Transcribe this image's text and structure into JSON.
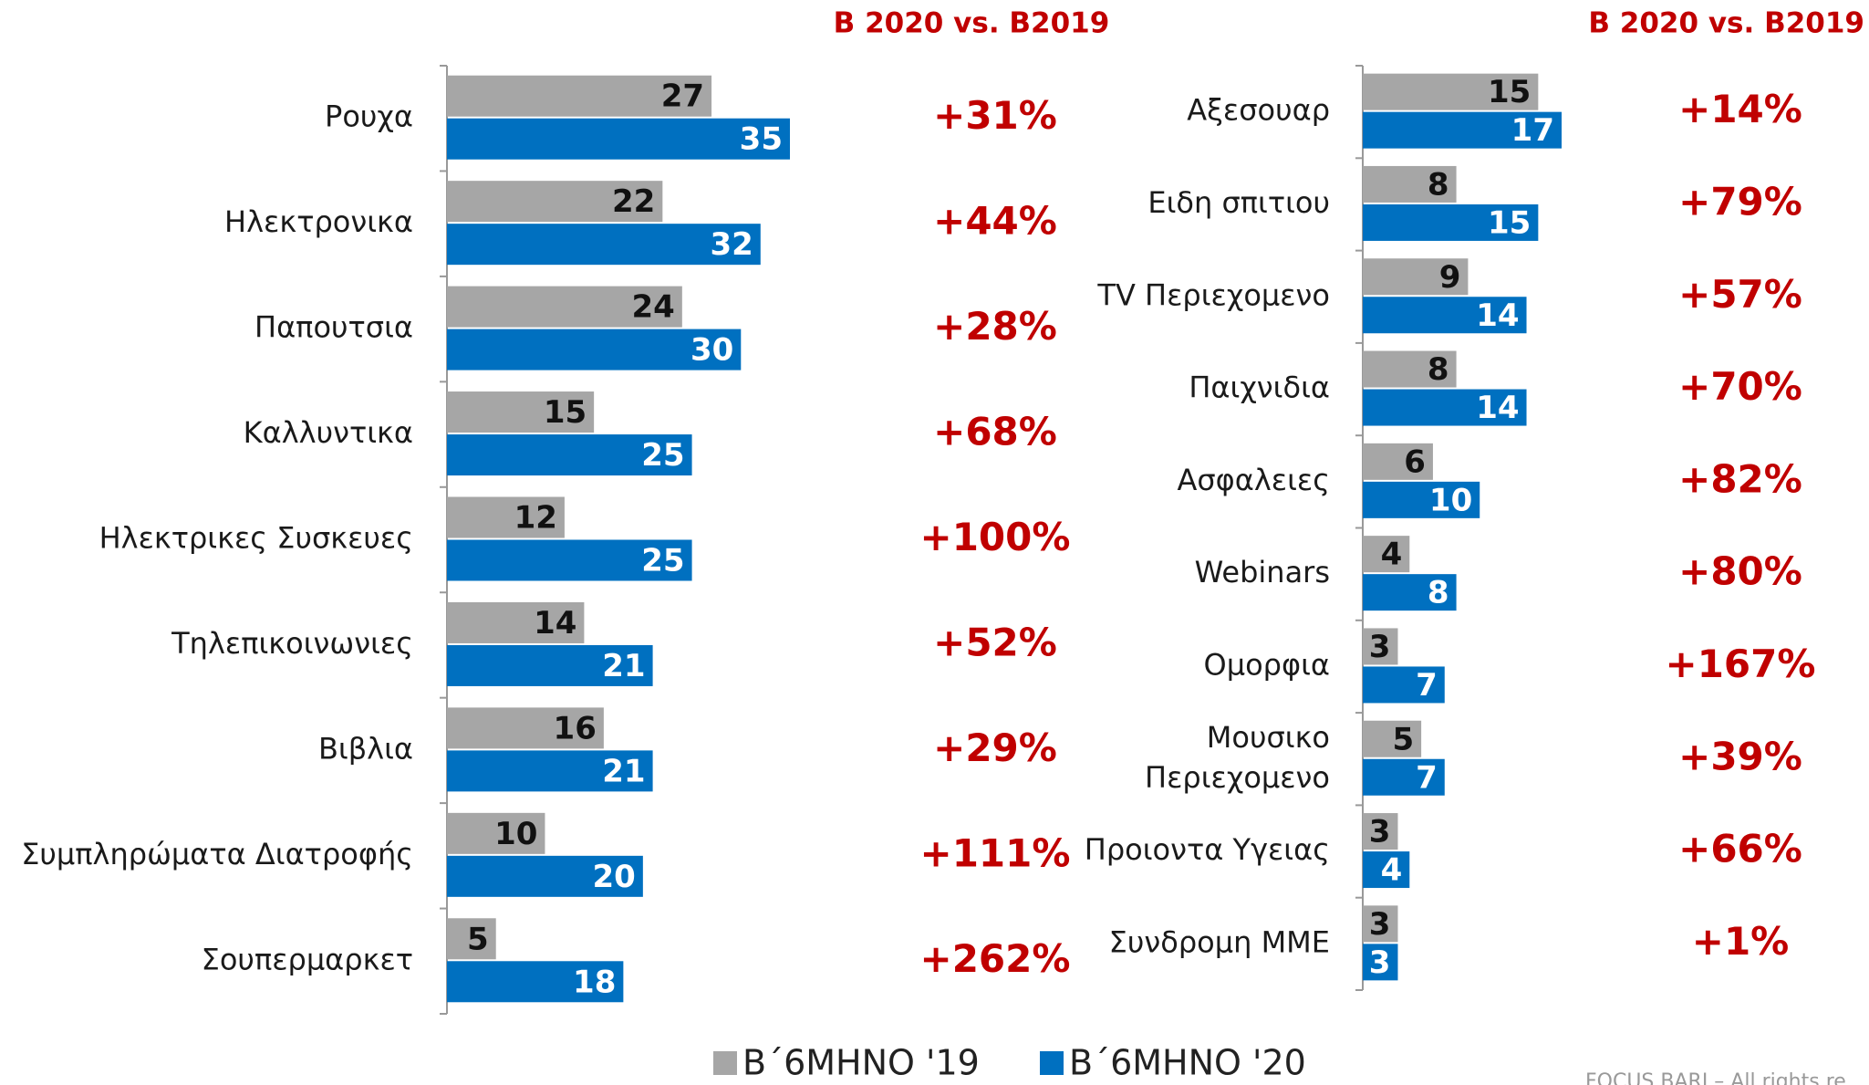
{
  "chart_data": [
    {
      "type": "bar",
      "orientation": "horizontal",
      "header": "B 2020 vs. B2019",
      "categories": [
        "Ρουχα",
        "Ηλεκτρονικα",
        "Παπουτσια",
        "Καλλυντικα",
        "Ηλεκτρικες Συσκευες",
        "Τηλεπικοινωνιες",
        "Βιβλια",
        "Συμπληρώματα Διατροφής",
        "Σουπερμαρκετ"
      ],
      "series": [
        {
          "name": "Β΄6ΜΗΝΟ '19",
          "color": "#a6a6a6",
          "values": [
            27,
            22,
            24,
            15,
            12,
            14,
            16,
            10,
            5
          ]
        },
        {
          "name": "Β΄6ΜΗΝΟ '20",
          "color": "#0070c0",
          "values": [
            35,
            32,
            30,
            25,
            25,
            21,
            21,
            20,
            18
          ]
        }
      ],
      "changes": [
        "+31%",
        "+44%",
        "+28%",
        "+68%",
        "+100%",
        "+52%",
        "+29%",
        "+111%",
        "+262%"
      ],
      "xlim": [
        0,
        35
      ]
    },
    {
      "type": "bar",
      "orientation": "horizontal",
      "header": "B 2020 vs. B2019",
      "categories": [
        "Αξεσουαρ",
        "Ειδη σπιτιου",
        "TV Περιεχομενο",
        "Παιχνιδια",
        "Ασφαλειες",
        "Webinars",
        "Ομορφια",
        "Μουσικο\nΠεριεχομενο",
        "Προιοντα Υγειας",
        "Συνδρομη ΜΜΕ"
      ],
      "series": [
        {
          "color": "#a6a6a6",
          "values": [
            15,
            8,
            9,
            8,
            6,
            4,
            3,
            5,
            3,
            3
          ]
        },
        {
          "color": "#0070c0",
          "values": [
            17,
            15,
            14,
            14,
            10,
            8,
            7,
            7,
            4,
            3
          ]
        }
      ],
      "changes": [
        "+14%",
        "+79%",
        "+57%",
        "+70%",
        "+82%",
        "+80%",
        "+167%",
        "+39%",
        "+66%",
        "+1%"
      ],
      "xlim": [
        0,
        17
      ]
    }
  ],
  "footer": "FOCUS BARI – All rights re"
}
